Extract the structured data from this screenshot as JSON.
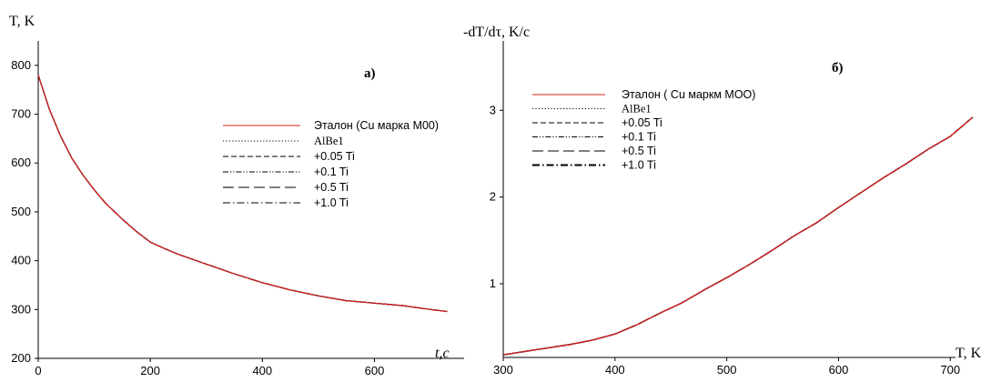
{
  "chart_data": [
    {
      "type": "line",
      "panel_label": "а)",
      "ylabel": "T, K",
      "xlabel": "t,c",
      "xlim": [
        0,
        760
      ],
      "ylim": [
        200,
        850
      ],
      "x_ticks": [
        "0",
        "200",
        "400",
        "600"
      ],
      "y_ticks": [
        "200",
        "300",
        "400",
        "500",
        "600",
        "700",
        "800"
      ],
      "legend_position": "upper-right",
      "series": [
        {
          "name": "Эталон (Cu марка М00)",
          "style": "solid",
          "color": "#d42020"
        },
        {
          "name": "AlBe1",
          "style": "dotted",
          "color": "#000000"
        },
        {
          "name": "+0.05 Ti",
          "style": "dashed",
          "color": "#000000"
        },
        {
          "name": "+0.1 Ti",
          "style": "dash-dot-dot",
          "color": "#000000"
        },
        {
          "name": "+0.5 Ti",
          "style": "long-dash",
          "color": "#000000"
        },
        {
          "name": "+1.0  Ti",
          "style": "dash-dot",
          "color": "#000000"
        }
      ],
      "x": [
        0,
        20,
        40,
        60,
        80,
        100,
        120,
        150,
        175,
        200,
        225,
        250,
        300,
        350,
        400,
        450,
        500,
        550,
        600,
        650,
        700,
        730
      ],
      "y": [
        780,
        710,
        655,
        610,
        575,
        545,
        518,
        485,
        460,
        438,
        425,
        413,
        393,
        373,
        355,
        340,
        328,
        318,
        313,
        308,
        300,
        296
      ]
    },
    {
      "type": "line",
      "panel_label": "б)",
      "ylabel": "-dT/dτ, K/c",
      "xlabel": "T, K",
      "xlim": [
        300,
        725
      ],
      "ylim": [
        0.15,
        3.8
      ],
      "x_ticks": [
        "300",
        "400",
        "500",
        "600",
        "700"
      ],
      "y_ticks": [
        "1",
        "2",
        "3"
      ],
      "legend_position": "upper-left",
      "series": [
        {
          "name": "Эталон ( Cu маркм  МОО)",
          "style": "solid",
          "color": "#d42020"
        },
        {
          "name": "AlBe1",
          "style": "dotted",
          "color": "#000000"
        },
        {
          "name": "+0.05 Ti",
          "style": "dashed",
          "color": "#000000"
        },
        {
          "name": "+0.1 Ti",
          "style": "dash-dot-dot",
          "color": "#000000"
        },
        {
          "name": "+0.5 Ti",
          "style": "long-dash",
          "color": "#000000"
        },
        {
          "name": "+1.0 Ti",
          "style": "dash-dot",
          "color": "#000000"
        }
      ],
      "x": [
        300,
        330,
        360,
        380,
        400,
        420,
        440,
        460,
        480,
        500,
        520,
        540,
        560,
        580,
        600,
        620,
        640,
        660,
        680,
        700,
        720
      ],
      "y": [
        0.18,
        0.24,
        0.3,
        0.35,
        0.42,
        0.53,
        0.66,
        0.78,
        0.93,
        1.07,
        1.22,
        1.38,
        1.55,
        1.7,
        1.88,
        2.05,
        2.22,
        2.38,
        2.55,
        2.7,
        2.92
      ]
    }
  ]
}
